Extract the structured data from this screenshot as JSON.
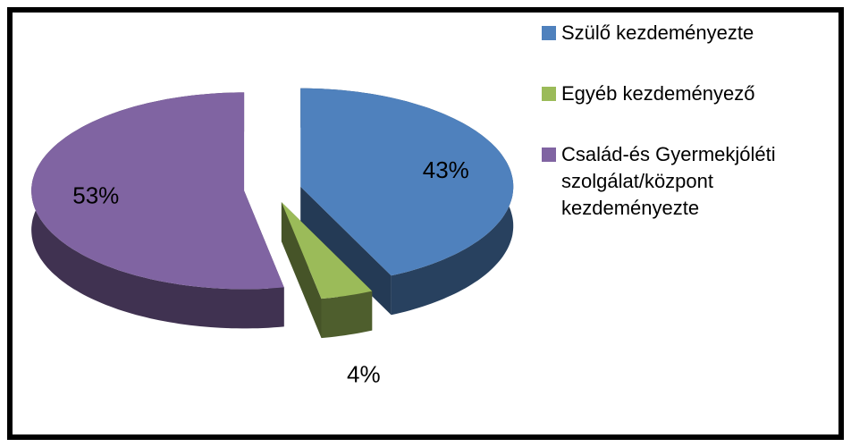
{
  "chart_data": {
    "type": "pie",
    "categories": [
      "Szülő kezdeményezte",
      "Egyéb kezdeményező",
      "Család-és Gyermekjóléti szolgálat/központ kezdeményezte"
    ],
    "values": [
      43,
      4,
      53
    ],
    "value_labels": [
      "43%",
      "4%",
      "53%"
    ],
    "colors": [
      "#4f81bd",
      "#9bbb59",
      "#8064a2"
    ],
    "exploded": true,
    "three_d": true,
    "legend": "right"
  }
}
